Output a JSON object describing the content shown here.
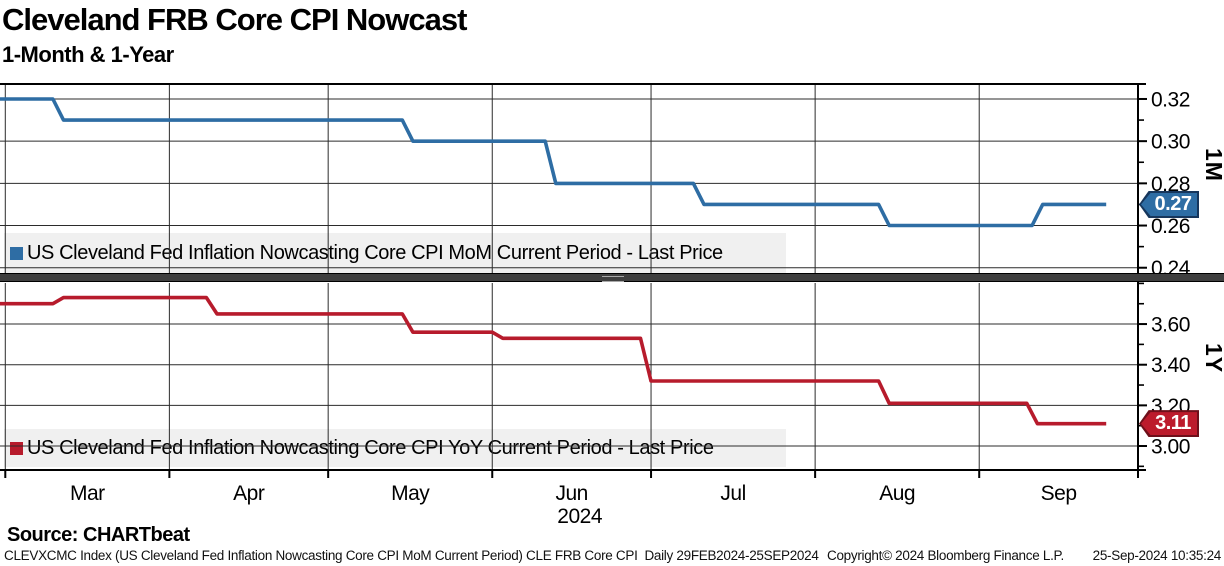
{
  "header": {
    "title": "Cleveland FRB Core CPI Nowcast",
    "subtitle": "1-Month & 1-Year"
  },
  "source_label": "Source: CHARTbeat",
  "footer": {
    "left": "CLEVXCMC Index (US Cleveland Fed Inflation Nowcasting Core CPI MoM Current Period) CLE FRB Core CPI  Daily 29FEB2024-25SEP2024",
    "copyright": "Copyright© 2024 Bloomberg Finance L.P.",
    "timestamp": "25-Sep-2024 10:35:24"
  },
  "colors": {
    "line_1m": "#2e6da4",
    "line_1y": "#b71b2c",
    "badge_1m_bg": "#2e6da4",
    "badge_1m_border": "#16365c",
    "badge_1y_bg": "#bc1b2c",
    "badge_1y_border": "#6e0f1a",
    "grid": "#2b2b2b",
    "axis": "#000000",
    "legend_bg": "#f0f0f0"
  },
  "x_axis": {
    "range": [
      "2024-02-29",
      "2024-10-01"
    ],
    "ticks": [
      "2024-03-01",
      "2024-04-01",
      "2024-05-01",
      "2024-06-01",
      "2024-07-01",
      "2024-08-01",
      "2024-09-01",
      "2024-10-01"
    ],
    "labels": [
      "Mar",
      "Apr",
      "May",
      "Jun",
      "Jul",
      "Aug",
      "Sep"
    ],
    "year": "2024"
  },
  "chart_data": [
    {
      "type": "line",
      "panel_label": "1M",
      "legend": "US Cleveland Fed Inflation Nowcasting Core CPI MoM Current Period - Last Price",
      "last_price_label": "0.27",
      "ylim": [
        0.2375,
        0.3271
      ],
      "yticks": [
        0.24,
        0.26,
        0.28,
        0.3,
        0.32
      ],
      "ytick_labels": [
        "0.24",
        "0.26",
        "0.28",
        "0.30",
        "0.32"
      ],
      "yminor_step": 0.01,
      "grid": true,
      "legend_position": "bottom-left",
      "series": [
        {
          "name": "US Cleveland Fed Inflation Nowcasting Core CPI MoM Current Period",
          "color": "#2e6da4",
          "points": [
            [
              "2024-02-29",
              0.32
            ],
            [
              "2024-03-10",
              0.32
            ],
            [
              "2024-03-12",
              0.31
            ],
            [
              "2024-05-15",
              0.31
            ],
            [
              "2024-05-17",
              0.3
            ],
            [
              "2024-06-11",
              0.3
            ],
            [
              "2024-06-13",
              0.28
            ],
            [
              "2024-07-09",
              0.28
            ],
            [
              "2024-07-11",
              0.27
            ],
            [
              "2024-08-13",
              0.27
            ],
            [
              "2024-08-15",
              0.26
            ],
            [
              "2024-09-11",
              0.26
            ],
            [
              "2024-09-13",
              0.27
            ],
            [
              "2024-09-25",
              0.27
            ]
          ]
        }
      ]
    },
    {
      "type": "line",
      "panel_label": "1Y",
      "legend": "US Cleveland Fed Inflation Nowcasting Core CPI YoY Current Period - Last Price",
      "last_price_label": "3.11",
      "ylim": [
        2.882,
        3.802
      ],
      "yticks": [
        3.0,
        3.2,
        3.4,
        3.6
      ],
      "ytick_labels": [
        "3.00",
        "3.20",
        "3.40",
        "3.60"
      ],
      "yminor_step": 0.1,
      "grid": true,
      "legend_position": "bottom-left",
      "series": [
        {
          "name": "US Cleveland Fed Inflation Nowcasting Core CPI YoY Current Period",
          "color": "#b71b2c",
          "points": [
            [
              "2024-02-29",
              3.7
            ],
            [
              "2024-03-10",
              3.7
            ],
            [
              "2024-03-12",
              3.73
            ],
            [
              "2024-04-08",
              3.73
            ],
            [
              "2024-04-10",
              3.65
            ],
            [
              "2024-05-15",
              3.65
            ],
            [
              "2024-05-17",
              3.56
            ],
            [
              "2024-06-01",
              3.56
            ],
            [
              "2024-06-03",
              3.53
            ],
            [
              "2024-06-29",
              3.53
            ],
            [
              "2024-07-01",
              3.32
            ],
            [
              "2024-08-13",
              3.32
            ],
            [
              "2024-08-15",
              3.21
            ],
            [
              "2024-09-10",
              3.21
            ],
            [
              "2024-09-12",
              3.11
            ],
            [
              "2024-09-25",
              3.11
            ]
          ]
        }
      ]
    }
  ]
}
